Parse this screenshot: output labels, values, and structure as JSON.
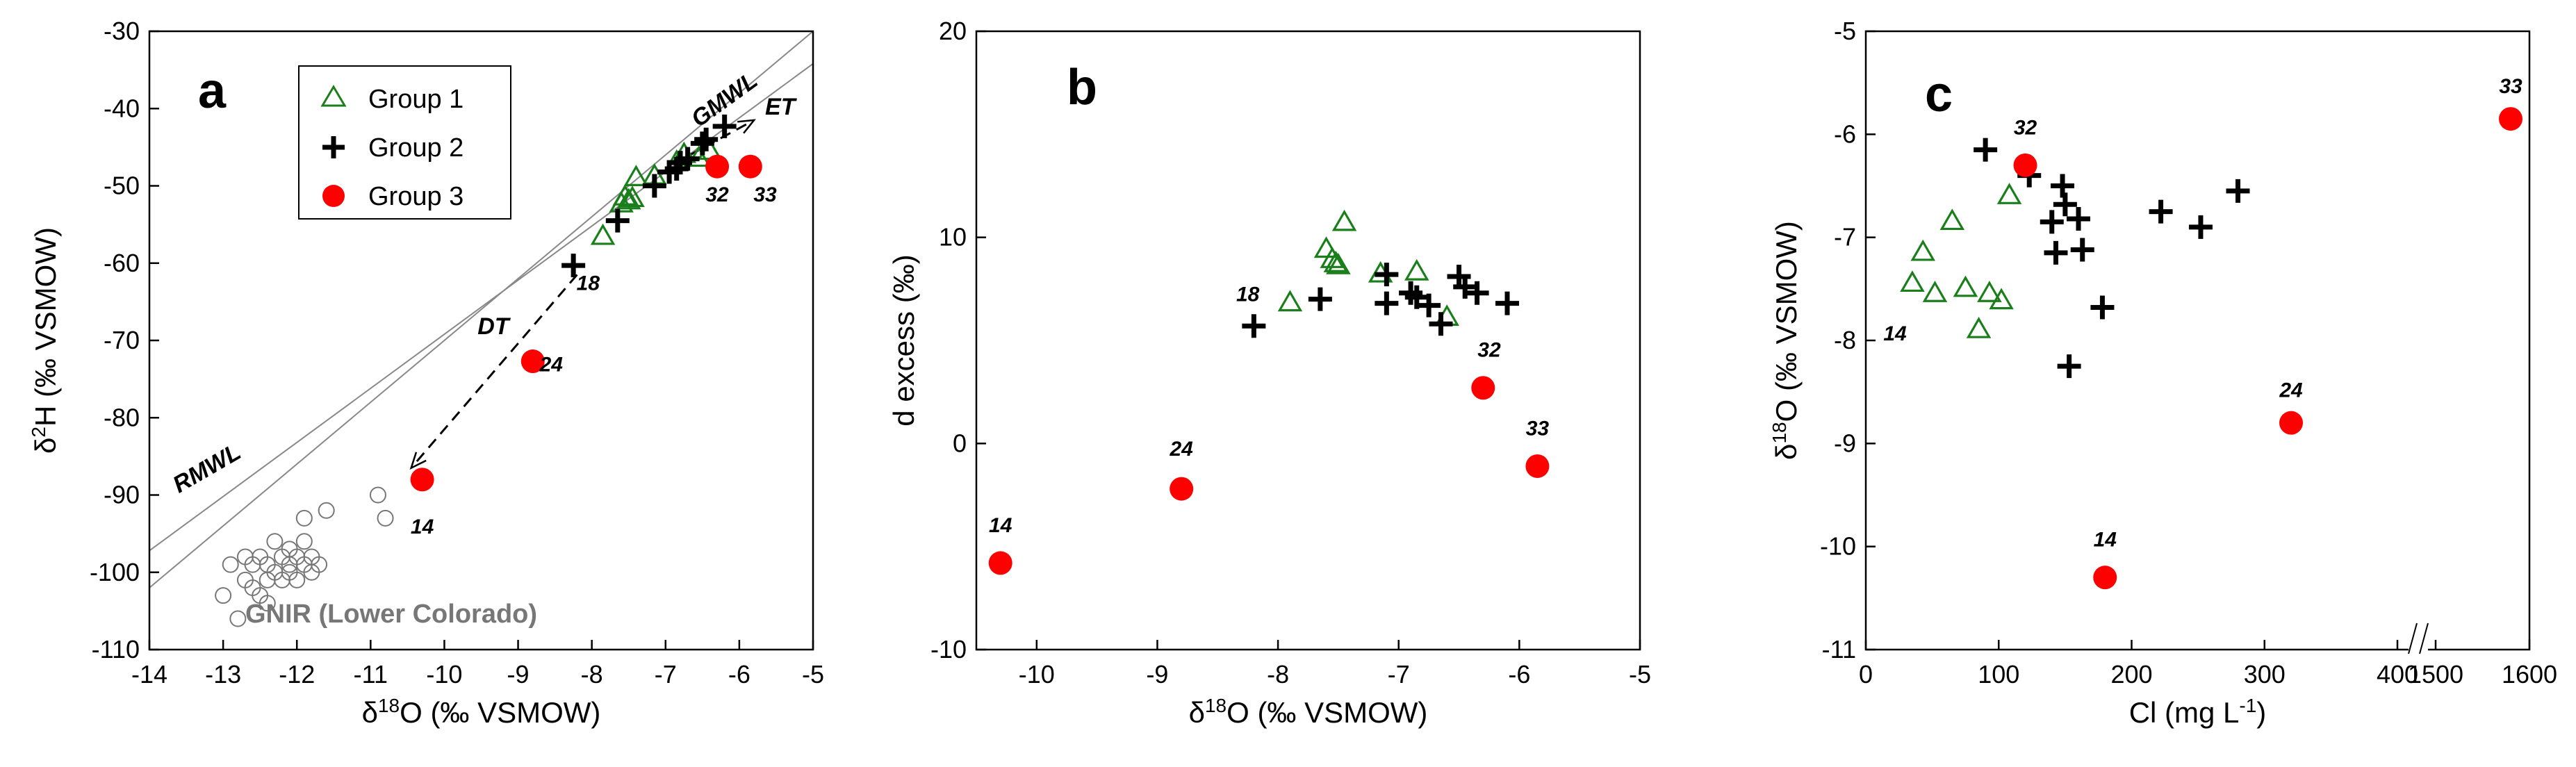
{
  "colors": {
    "group1": "#1a7f1a",
    "group2": "#000000",
    "group3": "#ff0000",
    "gnir": "#777777"
  },
  "legend": {
    "placement": "top",
    "items": [
      {
        "label": "Group 1",
        "marker": "open-triangle",
        "color": "#1a7f1a"
      },
      {
        "label": "Group 2",
        "marker": "plus",
        "color": "#000000"
      },
      {
        "label": "Group 3",
        "marker": "filled-circle",
        "color": "#ff0000"
      }
    ]
  },
  "chart_data": [
    {
      "panel": "a",
      "type": "scatter",
      "xlabel": "δ18O (‰ VSMOW)",
      "ylabel": "δ2H (‰ VSMOW)",
      "xlim": [
        -14,
        -5
      ],
      "ylim": [
        -110,
        -30
      ],
      "x_ticks": [
        -14,
        -13,
        -12,
        -11,
        -10,
        -9,
        -8,
        -7,
        -6,
        -5
      ],
      "y_ticks": [
        -110,
        -100,
        -90,
        -80,
        -70,
        -60,
        -50,
        -40,
        -30
      ],
      "lines": [
        {
          "label": "GMWL",
          "slope": 8,
          "intercept": 10
        },
        {
          "label": "RMWL",
          "slope": 7,
          "intercept": 0.8
        }
      ],
      "arrows": [
        {
          "label": "ET",
          "from": [
            -6.9,
            -47.2
          ],
          "to": [
            -5.8,
            -41.5
          ]
        },
        {
          "label": "DT",
          "from": [
            -8.2,
            -61.5
          ],
          "to": [
            -10.45,
            -86.5
          ]
        }
      ],
      "series": [
        {
          "name": "Group 1",
          "marker": "open-triangle",
          "color": "#1a7f1a",
          "points": [
            [
              -7.85,
              -56.6
            ],
            [
              -7.6,
              -52.4
            ],
            [
              -7.55,
              -51.5
            ],
            [
              -7.5,
              -52.0
            ],
            [
              -7.45,
              -51.7
            ],
            [
              -7.4,
              -49.0
            ],
            [
              -7.15,
              -48.8
            ],
            [
              -6.85,
              -47.0
            ],
            [
              -6.75,
              -46.0
            ],
            [
              -6.55,
              -46.5
            ],
            [
              -6.4,
              -45.6
            ]
          ]
        },
        {
          "name": "Group 2",
          "marker": "plus",
          "color": "#000000",
          "points": [
            [
              -8.25,
              -60.3
            ],
            [
              -7.65,
              -54.5
            ],
            [
              -7.15,
              -50.0
            ],
            [
              -6.95,
              -48.2
            ],
            [
              -6.85,
              -47.8
            ],
            [
              -6.8,
              -47.0
            ],
            [
              -6.7,
              -46.5
            ],
            [
              -6.5,
              -44.5
            ],
            [
              -6.45,
              -44.0
            ],
            [
              -6.2,
              -42.3
            ]
          ]
        },
        {
          "name": "Group 3",
          "marker": "filled-circle",
          "color": "#ff0000",
          "points": [
            [
              -10.3,
              -88.0
            ],
            [
              -8.8,
              -72.7
            ],
            [
              -6.3,
              -47.5
            ],
            [
              -5.85,
              -47.5
            ]
          ]
        },
        {
          "name": "GNIR (Lower Colorado)",
          "marker": "open-circle",
          "color": "#777777",
          "points": [
            [
              -13.0,
              -103
            ],
            [
              -12.8,
              -106
            ],
            [
              -12.9,
              -99
            ],
            [
              -12.7,
              -101
            ],
            [
              -12.7,
              -98
            ],
            [
              -12.6,
              -102
            ],
            [
              -12.6,
              -99
            ],
            [
              -12.5,
              -103
            ],
            [
              -12.5,
              -98
            ],
            [
              -12.4,
              -101
            ],
            [
              -12.4,
              -99
            ],
            [
              -12.4,
              -104
            ],
            [
              -12.3,
              -100
            ],
            [
              -12.3,
              -96
            ],
            [
              -12.2,
              -98
            ],
            [
              -12.2,
              -101
            ],
            [
              -12.1,
              -99
            ],
            [
              -12.1,
              -97
            ],
            [
              -12.1,
              -100
            ],
            [
              -12.0,
              -98
            ],
            [
              -12.0,
              -101
            ],
            [
              -11.9,
              -99
            ],
            [
              -11.9,
              -96
            ],
            [
              -11.8,
              -98
            ],
            [
              -11.8,
              -100
            ],
            [
              -11.7,
              -99
            ],
            [
              -11.9,
              -93
            ],
            [
              -11.6,
              -92
            ],
            [
              -10.9,
              -90
            ],
            [
              -10.8,
              -93
            ]
          ]
        }
      ],
      "annotations": [
        {
          "text": "18",
          "at": [
            -8.05,
            -63.5
          ]
        },
        {
          "text": "24",
          "at": [
            -8.55,
            -74.0
          ]
        },
        {
          "text": "14",
          "at": [
            -10.3,
            -95.0
          ]
        },
        {
          "text": "32",
          "at": [
            -6.3,
            -52.0
          ]
        },
        {
          "text": "33",
          "at": [
            -5.65,
            -52.0
          ]
        }
      ],
      "text_labels": {
        "gmwl": "GMWL",
        "rmwl": "RMWL",
        "et": "ET",
        "dt": "DT",
        "gnir": "GNIR (Lower Colorado)"
      }
    },
    {
      "panel": "b",
      "type": "scatter",
      "xlabel": "δ18O (‰ VSMOW)",
      "ylabel": "d excess (‰)",
      "xlim": [
        -10.5,
        -5
      ],
      "ylim": [
        -10,
        20
      ],
      "x_ticks": [
        -10,
        -9,
        -8,
        -7,
        -6,
        -5
      ],
      "y_ticks": [
        -10,
        0,
        10,
        20
      ],
      "series": [
        {
          "name": "Group 1",
          "marker": "open-triangle",
          "color": "#1a7f1a",
          "points": [
            [
              -7.9,
              6.8
            ],
            [
              -7.6,
              9.4
            ],
            [
              -7.55,
              8.9
            ],
            [
              -7.52,
              8.7
            ],
            [
              -7.5,
              8.6
            ],
            [
              -7.45,
              10.7
            ],
            [
              -7.15,
              8.2
            ],
            [
              -6.85,
              8.3
            ],
            [
              -6.6,
              6.1
            ]
          ]
        },
        {
          "name": "Group 2",
          "marker": "plus",
          "color": "#000000",
          "points": [
            [
              -8.2,
              5.7
            ],
            [
              -7.65,
              7.0
            ],
            [
              -7.1,
              8.2
            ],
            [
              -7.1,
              6.8
            ],
            [
              -6.9,
              7.3
            ],
            [
              -6.85,
              7.1
            ],
            [
              -6.75,
              6.7
            ],
            [
              -6.65,
              5.8
            ],
            [
              -6.5,
              8.1
            ],
            [
              -6.45,
              7.6
            ],
            [
              -6.35,
              7.3
            ],
            [
              -6.1,
              6.8
            ]
          ]
        },
        {
          "name": "Group 3",
          "marker": "filled-circle",
          "color": "#ff0000",
          "points": [
            [
              -10.3,
              -5.8
            ],
            [
              -8.8,
              -2.2
            ],
            [
              -6.3,
              2.7
            ],
            [
              -5.85,
              -1.1
            ]
          ]
        }
      ],
      "annotations": [
        {
          "text": "18",
          "at": [
            -8.25,
            6.9
          ]
        },
        {
          "text": "24",
          "at": [
            -8.8,
            -0.6
          ]
        },
        {
          "text": "14",
          "at": [
            -10.3,
            -4.3
          ]
        },
        {
          "text": "32",
          "at": [
            -6.25,
            4.2
          ]
        },
        {
          "text": "33",
          "at": [
            -5.85,
            0.4
          ]
        }
      ]
    },
    {
      "panel": "c",
      "type": "scatter",
      "xlabel": "Cl (mg L-1)",
      "ylabel": "δ18O (‰ VSMOW)",
      "xlim": [
        0,
        1600
      ],
      "x_axis_break": {
        "between": [
          400,
          1500
        ],
        "symbol": "//"
      },
      "ylim": [
        -11,
        -5
      ],
      "x_ticks": [
        0,
        100,
        200,
        300,
        400,
        1500,
        1600
      ],
      "y_ticks": [
        -11,
        -10,
        -9,
        -8,
        -7,
        -6,
        -5
      ],
      "series": [
        {
          "name": "Group 1",
          "marker": "open-triangle",
          "color": "#1a7f1a",
          "points": [
            [
              35,
              -7.45
            ],
            [
              43,
              -7.15
            ],
            [
              52,
              -7.55
            ],
            [
              65,
              -6.85
            ],
            [
              75,
              -7.5
            ],
            [
              85,
              -7.9
            ],
            [
              93,
              -7.55
            ],
            [
              102,
              -7.62
            ],
            [
              108,
              -6.6
            ]
          ]
        },
        {
          "name": "Group 2",
          "marker": "plus",
          "color": "#000000",
          "points": [
            [
              90,
              -6.15
            ],
            [
              123,
              -6.4
            ],
            [
              140,
              -6.85
            ],
            [
              143,
              -7.15
            ],
            [
              148,
              -6.5
            ],
            [
              150,
              -6.68
            ],
            [
              153,
              -8.25
            ],
            [
              160,
              -6.82
            ],
            [
              163,
              -7.12
            ],
            [
              178,
              -7.68
            ],
            [
              222,
              -6.75
            ],
            [
              252,
              -6.9
            ],
            [
              280,
              -6.55
            ]
          ]
        },
        {
          "name": "Group 3",
          "marker": "filled-circle",
          "color": "#ff0000",
          "points": [
            [
              120,
              -6.3
            ],
            [
              180,
              -10.3
            ],
            [
              320,
              -8.8
            ],
            [
              1580,
              -5.85
            ]
          ]
        }
      ],
      "annotations": [
        {
          "text": "32",
          "at": [
            120,
            -6.0
          ]
        },
        {
          "text": "14",
          "at": [
            180,
            -10.0
          ]
        },
        {
          "text": "24",
          "at": [
            320,
            -8.55
          ]
        },
        {
          "text": "33",
          "at": [
            1580,
            -5.6
          ]
        },
        {
          "text": "14",
          "at": [
            22,
            -8.0
          ]
        }
      ]
    }
  ],
  "panel_letters": {
    "a": "a",
    "b": "b",
    "c": "c"
  }
}
